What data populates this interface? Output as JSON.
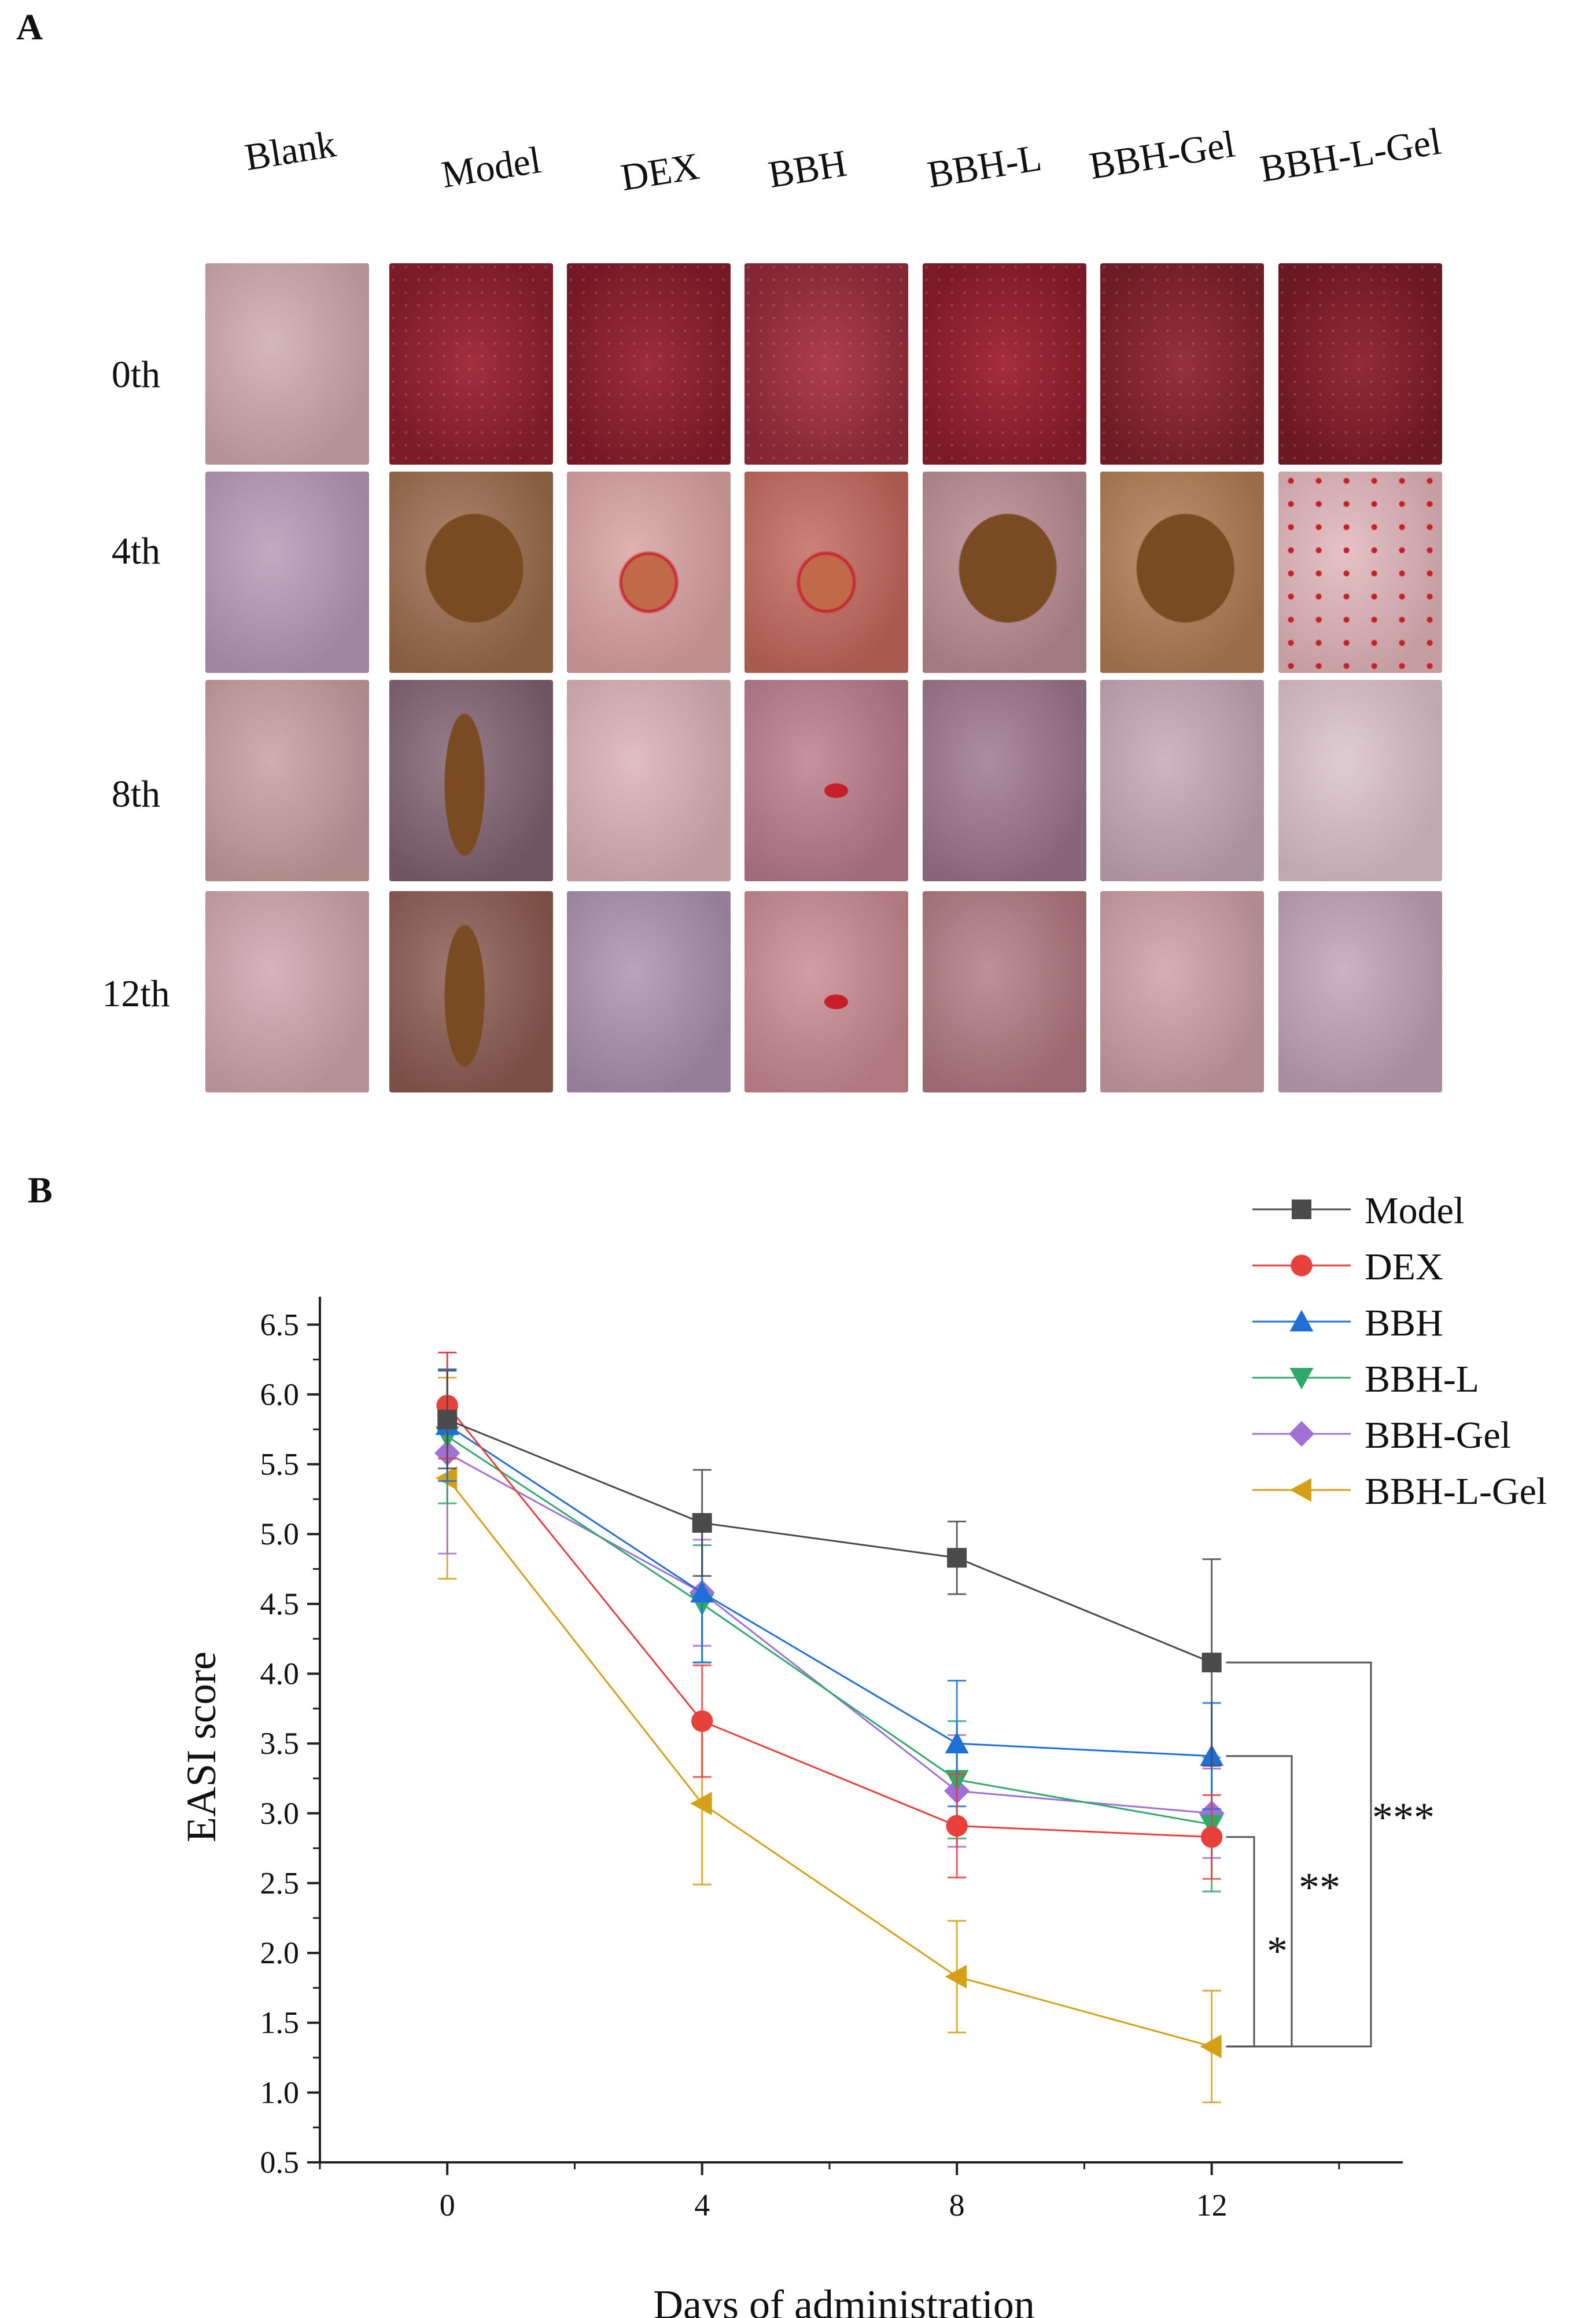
{
  "panel_a": {
    "label": "A",
    "columns": [
      "Blank",
      "Model",
      "DEX",
      "BBH",
      "BBH-L",
      "BBH-Gel",
      "BBH-L-Gel"
    ],
    "rows": [
      "0th",
      "4th",
      "8th",
      "12th"
    ],
    "photo_colors": [
      [
        "#cba7ad",
        "#9c2232",
        "#962030",
        "#a83242",
        "#9e2030",
        "#8e2430",
        "#8a1e2c"
      ],
      [
        "#b598b4",
        "#9a6a4a",
        "#d8a0a0",
        "#c0665a",
        "#b88a90",
        "#b07a50",
        "#e0b4b8"
      ],
      [
        "#c69c9c",
        "#806070",
        "#d8b0b4",
        "#b87a8a",
        "#9a7488",
        "#c4a4b4",
        "#d8c0c8"
      ],
      [
        "#cea4ac",
        "#8a5a50",
        "#a890ac",
        "#c88890",
        "#b07880",
        "#cc9ca4",
        "#c0a0b4"
      ]
    ],
    "lesion_colors": {
      "crust": "#7a4a22",
      "spot": "#c81e2a"
    }
  },
  "panel_b": {
    "label": "B"
  },
  "chart_data": {
    "type": "line",
    "title": "",
    "xlabel": "Days of administration",
    "ylabel": "EASI score",
    "x": [
      0,
      4,
      8,
      12
    ],
    "xticks": [
      0,
      4,
      8,
      12
    ],
    "xlim": [
      -2,
      15
    ],
    "ylim": [
      0.5,
      6.7
    ],
    "yticks": [
      0.5,
      1.0,
      1.5,
      2.0,
      2.5,
      3.0,
      3.5,
      4.0,
      4.5,
      5.0,
      5.5,
      6.0,
      6.5
    ],
    "ytick_labels": [
      "0.5",
      "1.0",
      "1.5",
      "2.0",
      "2.5",
      "3.0",
      "3.5",
      "4.0",
      "4.5",
      "5.0",
      "5.5",
      "6.0",
      "6.5"
    ],
    "legend_position": "top-right",
    "series": [
      {
        "name": "Model",
        "marker": "square",
        "color": "#4a4a4a",
        "values": [
          5.82,
          5.08,
          4.83,
          4.08
        ],
        "errors": [
          0.35,
          0.38,
          0.26,
          0.74
        ]
      },
      {
        "name": "DEX",
        "marker": "circle",
        "color": "#e8403a",
        "values": [
          5.92,
          3.66,
          2.91,
          2.83
        ],
        "errors": [
          0.38,
          0.4,
          0.37,
          0.3
        ]
      },
      {
        "name": "BBH",
        "marker": "triangle-up",
        "color": "#1f6fd6",
        "values": [
          5.78,
          4.58,
          3.5,
          3.41
        ],
        "errors": [
          0.4,
          0.5,
          0.45,
          0.38
        ]
      },
      {
        "name": "BBH-L",
        "marker": "triangle-down",
        "color": "#2faa6a",
        "values": [
          5.7,
          4.5,
          3.24,
          2.92
        ],
        "errors": [
          0.48,
          0.42,
          0.42,
          0.48
        ]
      },
      {
        "name": "BBH-Gel",
        "marker": "diamond",
        "color": "#a070d8",
        "values": [
          5.58,
          4.58,
          3.16,
          3.0
        ],
        "errors": [
          0.72,
          0.38,
          0.4,
          0.32
        ]
      },
      {
        "name": "BBH-L-Gel",
        "marker": "triangle-left",
        "color": "#d4a017",
        "values": [
          5.4,
          3.07,
          1.83,
          1.33
        ],
        "errors": [
          0.72,
          0.58,
          0.4,
          0.4
        ]
      }
    ],
    "annotations": [
      {
        "text": "*",
        "from_series": "BBH-L-Gel",
        "to_series": "DEX"
      },
      {
        "text": "**",
        "from_series": "BBH-L-Gel",
        "to_series": "BBH"
      },
      {
        "text": "***",
        "from_series": "BBH-L-Gel",
        "to_series": "Model"
      }
    ],
    "annotation_color": "#555555",
    "axis_color": "#222222"
  }
}
